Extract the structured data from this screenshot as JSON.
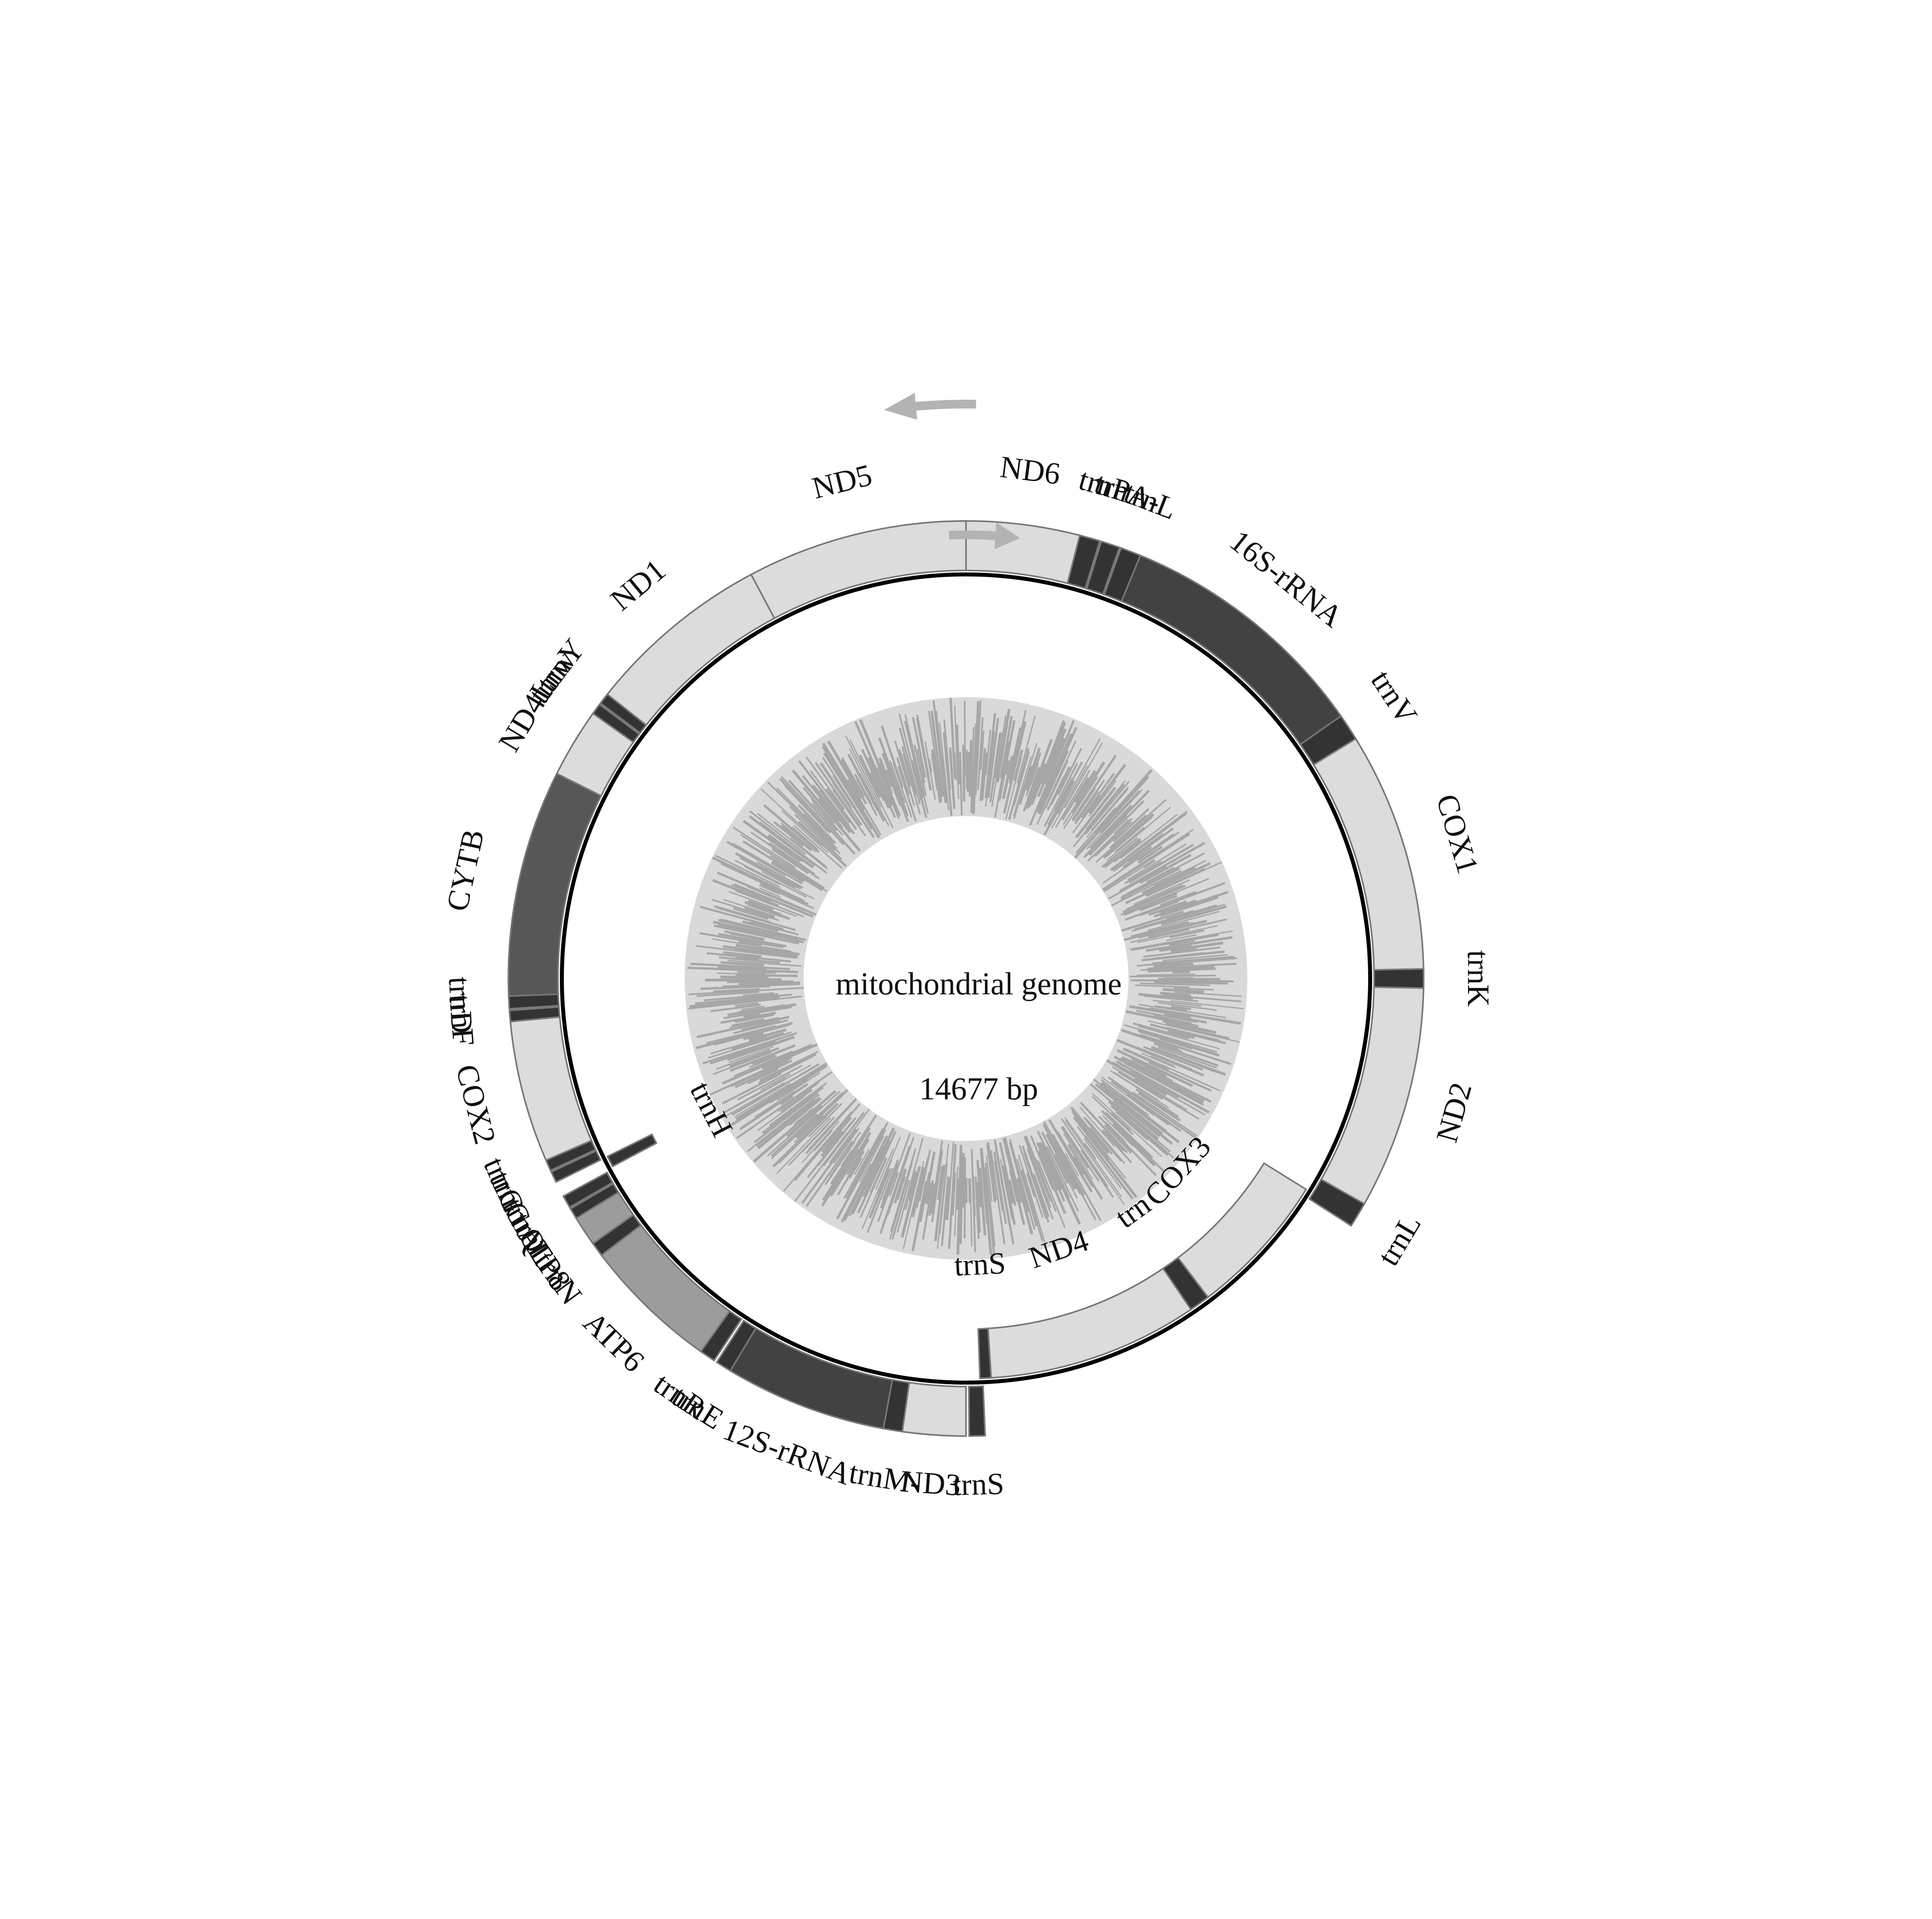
{
  "diagram": {
    "title": "mitochondrial genome",
    "size_label": "14677 bp"
  },
  "colors": {
    "pcg": "#dcdcdc",
    "trna": "#333333",
    "rrna": "#424242",
    "atp": "#9c9c9c",
    "cytb": "#575757",
    "backbone": "#000000",
    "arrow": "#b3b3b3",
    "gc_light": "#d9d9d9",
    "gc_dark": "#a6a6a6"
  },
  "strand_arrows": {
    "outer": "counter-clockwise",
    "inner": "clockwise"
  },
  "genes": [
    {
      "name": "ND6",
      "strand": "outer",
      "kind": "pcg",
      "start": 0,
      "end": 14.4
    },
    {
      "name": "trnP",
      "strand": "outer",
      "kind": "trna",
      "start": 14.4,
      "end": 17.0
    },
    {
      "name": "trnA-",
      "strand": "outer",
      "kind": "trna",
      "start": 17.2,
      "end": 19.6
    },
    {
      "name": "trnL",
      "strand": "outer",
      "kind": "trna",
      "start": 19.8,
      "end": 22.4
    },
    {
      "name": "16S-rRNA",
      "strand": "outer",
      "kind": "rrna",
      "start": 22.4,
      "end": 55.0
    },
    {
      "name": "trnV",
      "strand": "outer",
      "kind": "trna",
      "start": 55.0,
      "end": 58.4
    },
    {
      "name": "COX1",
      "strand": "outer",
      "kind": "pcg",
      "start": 58.4,
      "end": 88.8
    },
    {
      "name": "trnK",
      "strand": "outer",
      "kind": "trna",
      "start": 88.8,
      "end": 91.2
    },
    {
      "name": "ND2",
      "strand": "outer",
      "kind": "pcg",
      "start": 91.2,
      "end": 119.5
    },
    {
      "name": "trnL",
      "strand": "outer",
      "kind": "trna",
      "start": 119.5,
      "end": 122.7
    },
    {
      "name": "COX3",
      "strand": "inner",
      "kind": "pcg",
      "start": 121.8,
      "end": 142.8
    },
    {
      "name": "trn",
      "strand": "inner",
      "kind": "trna",
      "start": 142.8,
      "end": 145.8
    },
    {
      "name": "ND4",
      "strand": "inner",
      "kind": "pcg",
      "start": 145.8,
      "end": 176.4
    },
    {
      "name": "trnS",
      "strand": "inner",
      "kind": "trna",
      "start": 176.4,
      "end": 178.0
    },
    {
      "name": "trnS",
      "strand": "outer",
      "kind": "trna",
      "start": 177.6,
      "end": 179.6
    },
    {
      "name": "ND3",
      "strand": "outer",
      "kind": "pcg",
      "start": 180.0,
      "end": 188.0
    },
    {
      "name": "trnM-",
      "strand": "outer",
      "kind": "trna",
      "start": 188.0,
      "end": 190.4
    },
    {
      "name": "12S-rRNA",
      "strand": "outer",
      "kind": "rrna",
      "start": 190.4,
      "end": 211.0
    },
    {
      "name": "trnE",
      "strand": "outer",
      "kind": "trna",
      "start": 211.0,
      "end": 213.0
    },
    {
      "name": "trnR",
      "strand": "outer",
      "kind": "trna",
      "start": 213.4,
      "end": 215.4
    },
    {
      "name": "ATP6",
      "strand": "outer",
      "kind": "atp",
      "start": 215.4,
      "end": 232.8
    },
    {
      "name": "trnN",
      "strand": "outer",
      "kind": "trna",
      "start": 232.8,
      "end": 234.6
    },
    {
      "name": "ATP8",
      "strand": "outer",
      "kind": "atp",
      "start": 234.6,
      "end": 238.4
    },
    {
      "name": "trnL",
      "strand": "outer",
      "kind": "trna",
      "start": 238.4,
      "end": 239.8
    },
    {
      "name": "trnQ",
      "strand": "outer",
      "kind": "trna",
      "start": 240.0,
      "end": 241.6
    },
    {
      "name": "trnH",
      "strand": "inner",
      "kind": "trna",
      "start": 242.0,
      "end": 243.6
    },
    {
      "name": "trnC",
      "strand": "outer",
      "kind": "trna",
      "start": 243.6,
      "end": 245.0
    },
    {
      "name": "trnG",
      "strand": "outer",
      "kind": "trna",
      "start": 245.2,
      "end": 246.6
    },
    {
      "name": "COX2",
      "strand": "outer",
      "kind": "pcg",
      "start": 246.6,
      "end": 264.6
    },
    {
      "name": "trnF",
      "strand": "outer",
      "kind": "trna",
      "start": 264.6,
      "end": 266.0
    },
    {
      "name": "trnD",
      "strand": "outer",
      "kind": "trna",
      "start": 266.2,
      "end": 267.8
    },
    {
      "name": "CYTB",
      "strand": "outer",
      "kind": "cytb",
      "start": 267.8,
      "end": 296.6
    },
    {
      "name": "ND4L",
      "strand": "outer",
      "kind": "pcg",
      "start": 296.6,
      "end": 305.4
    },
    {
      "name": "trnw",
      "strand": "outer",
      "kind": "trna",
      "start": 305.4,
      "end": 306.8
    },
    {
      "name": "trnY",
      "strand": "outer",
      "kind": "trna",
      "start": 307.0,
      "end": 308.4
    },
    {
      "name": "ND1",
      "strand": "outer",
      "kind": "pcg",
      "start": 308.4,
      "end": 332.0
    },
    {
      "name": "ND5",
      "strand": "outer",
      "kind": "pcg",
      "start": 332.0,
      "end": 360.0
    }
  ]
}
